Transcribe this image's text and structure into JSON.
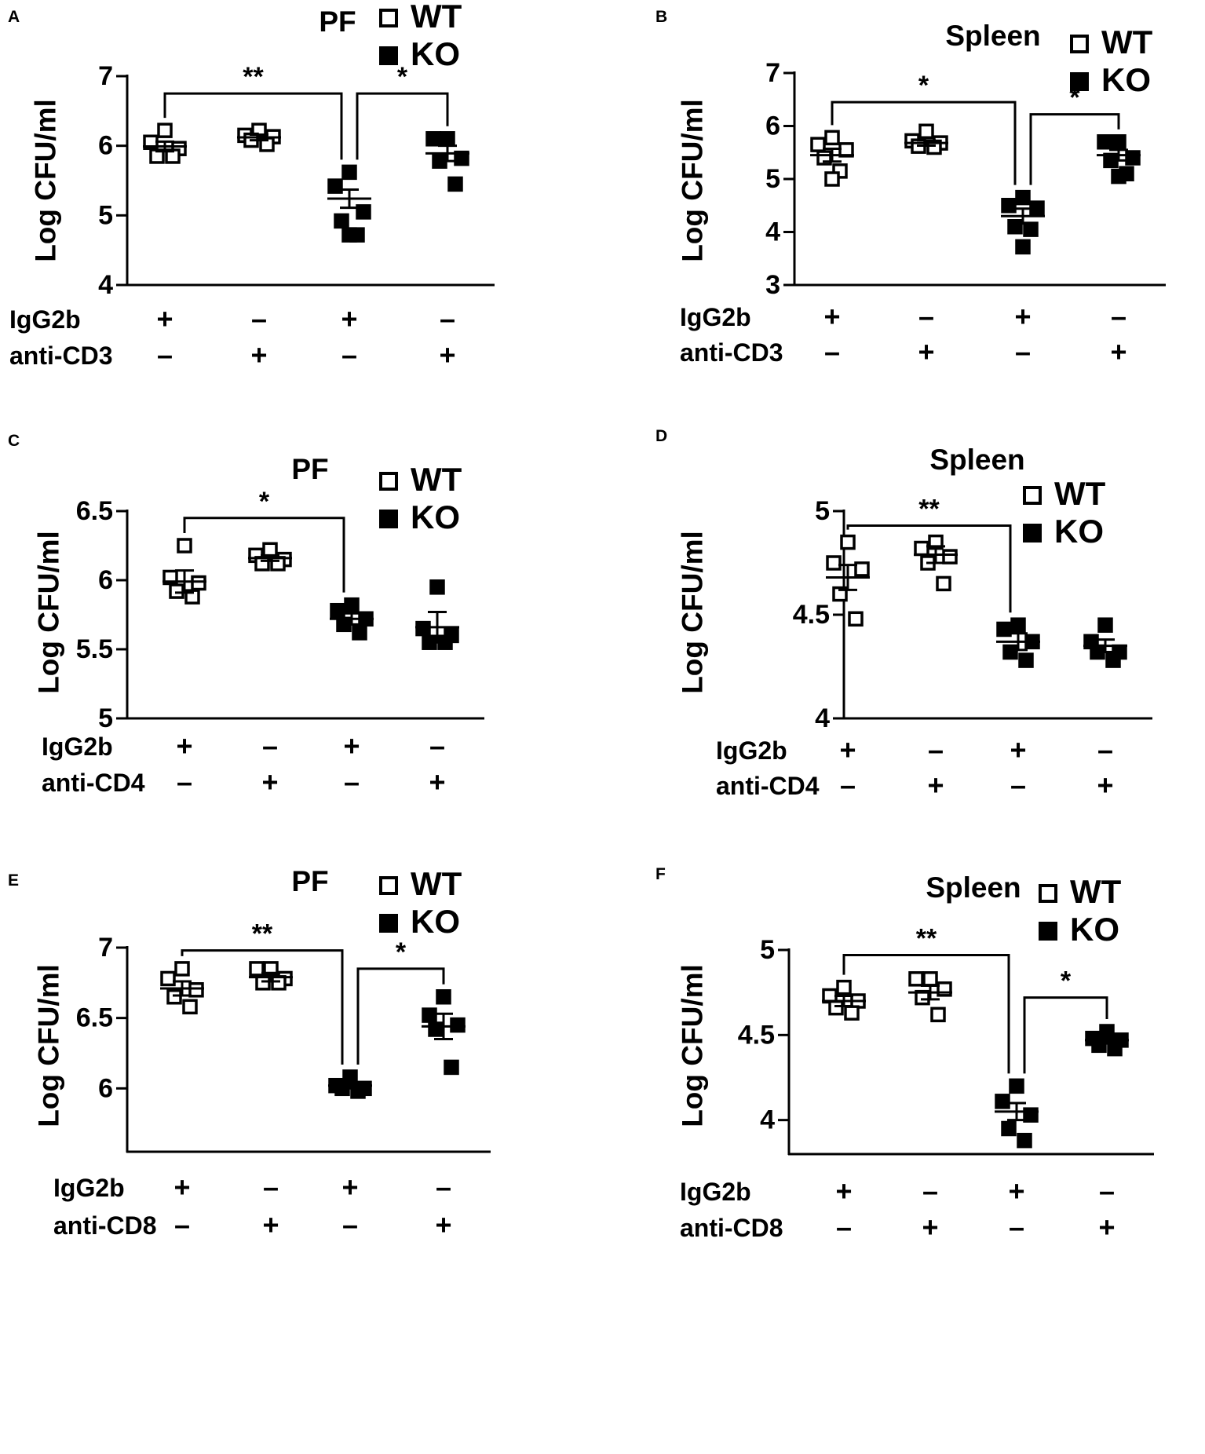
{
  "chart_data": [
    {
      "panel": "A",
      "type": "scatter",
      "title": "PF",
      "ylabel": "Log CFU/ml",
      "xlabel": "",
      "ylim": [
        4,
        7
      ],
      "yticks": [
        "7",
        "6",
        "5",
        "4"
      ],
      "legend": [
        {
          "name": "WT",
          "marker": "open-square"
        },
        {
          "name": "KO",
          "marker": "filled-square"
        }
      ],
      "legend_position": "top-right",
      "rows": [
        {
          "label": "IgG2b",
          "signs": [
            "+",
            "–",
            "+",
            "–"
          ]
        },
        {
          "label": "anti-CD3",
          "signs": [
            "–",
            "+",
            "–",
            "+"
          ]
        }
      ],
      "groups": [
        {
          "genotype": "WT",
          "values": [
            6.22,
            6.05,
            5.96,
            5.85,
            5.85
          ],
          "mean": 5.99,
          "sem": 0.07
        },
        {
          "genotype": "WT",
          "values": [
            6.22,
            6.15,
            6.13,
            6.08,
            6.02
          ],
          "mean": 6.12,
          "sem": 0.04
        },
        {
          "genotype": "KO",
          "values": [
            5.62,
            5.42,
            5.05,
            4.92,
            4.72,
            4.72
          ],
          "mean": 5.24,
          "sem": 0.13
        },
        {
          "genotype": "KO",
          "values": [
            6.1,
            6.1,
            5.82,
            5.78,
            5.45
          ],
          "mean": 5.89,
          "sem": 0.11
        }
      ],
      "significance": [
        {
          "from": 0,
          "to": 2,
          "label": "**",
          "y": 6.75
        },
        {
          "from": 2,
          "to": 3,
          "label": "*",
          "y": 6.75
        }
      ]
    },
    {
      "panel": "B",
      "type": "scatter",
      "title": "Spleen",
      "ylabel": "Log CFU/ml",
      "xlabel": "",
      "ylim": [
        3,
        7
      ],
      "yticks": [
        "7",
        "6",
        "5",
        "4",
        "3"
      ],
      "legend": [
        {
          "name": "WT",
          "marker": "open-square"
        },
        {
          "name": "KO",
          "marker": "filled-square"
        }
      ],
      "legend_position": "top-right",
      "rows": [
        {
          "label": "IgG2b",
          "signs": [
            "+",
            "–",
            "+",
            "–"
          ]
        },
        {
          "label": "anti-CD3",
          "signs": [
            "–",
            "+",
            "–",
            "+"
          ]
        }
      ],
      "groups": [
        {
          "genotype": "WT",
          "values": [
            5.78,
            5.65,
            5.55,
            5.4,
            5.15,
            5.0
          ],
          "mean": 5.45,
          "sem": 0.12
        },
        {
          "genotype": "WT",
          "values": [
            5.9,
            5.72,
            5.68,
            5.62,
            5.6
          ],
          "mean": 5.68,
          "sem": 0.05
        },
        {
          "genotype": "KO",
          "values": [
            4.65,
            4.5,
            4.45,
            4.1,
            4.05,
            3.72
          ],
          "mean": 4.3,
          "sem": 0.14
        },
        {
          "genotype": "KO",
          "values": [
            5.7,
            5.7,
            5.4,
            5.35,
            5.1,
            5.05
          ],
          "mean": 5.45,
          "sem": 0.1
        }
      ],
      "significance": [
        {
          "from": 0,
          "to": 2,
          "label": "*",
          "y": 6.45
        },
        {
          "from": 2,
          "to": 3,
          "label": "*",
          "y": 6.22
        }
      ]
    },
    {
      "panel": "C",
      "type": "scatter",
      "title": "PF",
      "ylabel": "Log CFU/ml",
      "xlabel": "",
      "ylim": [
        5,
        6.5
      ],
      "yticks": [
        "6.5",
        "6",
        "5.5",
        "5"
      ],
      "legend": [
        {
          "name": "WT",
          "marker": "open-square"
        },
        {
          "name": "KO",
          "marker": "filled-square"
        }
      ],
      "legend_position": "top-right",
      "rows": [
        {
          "label": "IgG2b",
          "signs": [
            "+",
            "–",
            "+",
            "–"
          ]
        },
        {
          "label": "anti-CD4",
          "signs": [
            "–",
            "+",
            "–",
            "+"
          ]
        }
      ],
      "groups": [
        {
          "genotype": "WT",
          "values": [
            6.25,
            6.02,
            5.98,
            5.92,
            5.88
          ],
          "mean": 5.99,
          "sem": 0.08
        },
        {
          "genotype": "WT",
          "values": [
            6.22,
            6.18,
            6.15,
            6.12,
            6.12
          ],
          "mean": 6.16,
          "sem": 0.02
        },
        {
          "genotype": "KO",
          "values": [
            5.82,
            5.78,
            5.72,
            5.68,
            5.62
          ],
          "mean": 5.72,
          "sem": 0.04
        },
        {
          "genotype": "KO",
          "values": [
            5.95,
            5.65,
            5.6,
            5.55,
            5.55
          ],
          "mean": 5.66,
          "sem": 0.11
        }
      ],
      "significance": [
        {
          "from": 0,
          "to": 2,
          "label": "*",
          "y": 6.45
        }
      ]
    },
    {
      "panel": "D",
      "type": "scatter",
      "title": "Spleen",
      "ylabel": "Log CFU/ml",
      "xlabel": "",
      "ylim": [
        4,
        5
      ],
      "yticks": [
        "5",
        "4.5",
        "4"
      ],
      "legend": [
        {
          "name": "WT",
          "marker": "open-square"
        },
        {
          "name": "KO",
          "marker": "filled-square"
        }
      ],
      "legend_position": "top-right",
      "rows": [
        {
          "label": "IgG2b",
          "signs": [
            "+",
            "–",
            "+",
            "–"
          ]
        },
        {
          "label": "anti-CD4",
          "signs": [
            "–",
            "+",
            "–",
            "+"
          ]
        }
      ],
      "groups": [
        {
          "genotype": "WT",
          "values": [
            4.85,
            4.75,
            4.72,
            4.6,
            4.48
          ],
          "mean": 4.68,
          "sem": 0.06
        },
        {
          "genotype": "WT",
          "values": [
            4.85,
            4.82,
            4.78,
            4.75,
            4.65
          ],
          "mean": 4.79,
          "sem": 0.04
        },
        {
          "genotype": "KO",
          "values": [
            4.45,
            4.43,
            4.37,
            4.32,
            4.28
          ],
          "mean": 4.37,
          "sem": 0.04
        },
        {
          "genotype": "KO",
          "values": [
            4.45,
            4.37,
            4.32,
            4.32,
            4.28
          ],
          "mean": 4.35,
          "sem": 0.03
        }
      ],
      "significance": [
        {
          "from": 0,
          "to": 2,
          "label": "**",
          "y": 4.93
        }
      ]
    },
    {
      "panel": "E",
      "type": "scatter",
      "title": "PF",
      "ylabel": "Log CFU/ml",
      "xlabel": "",
      "ylim": [
        5.55,
        7
      ],
      "yticks": [
        "7",
        "6.5",
        "6"
      ],
      "legend": [
        {
          "name": "WT",
          "marker": "open-square"
        },
        {
          "name": "KO",
          "marker": "filled-square"
        }
      ],
      "legend_position": "top-right",
      "rows": [
        {
          "label": "IgG2b",
          "signs": [
            "+",
            "–",
            "+",
            "–"
          ]
        },
        {
          "label": "anti-CD8",
          "signs": [
            "–",
            "+",
            "–",
            "+"
          ]
        }
      ],
      "groups": [
        {
          "genotype": "WT",
          "values": [
            6.85,
            6.78,
            6.7,
            6.65,
            6.58
          ],
          "mean": 6.71,
          "sem": 0.05
        },
        {
          "genotype": "WT",
          "values": [
            6.85,
            6.85,
            6.78,
            6.75,
            6.75
          ],
          "mean": 6.79,
          "sem": 0.03
        },
        {
          "genotype": "KO",
          "values": [
            6.08,
            6.02,
            6.0,
            6.0,
            5.98
          ],
          "mean": 6.02,
          "sem": 0.02
        },
        {
          "genotype": "KO",
          "values": [
            6.65,
            6.52,
            6.45,
            6.42,
            6.15
          ],
          "mean": 6.44,
          "sem": 0.09
        }
      ],
      "significance": [
        {
          "from": 0,
          "to": 2,
          "label": "**",
          "y": 6.98
        },
        {
          "from": 2,
          "to": 3,
          "label": "*",
          "y": 6.85
        }
      ]
    },
    {
      "panel": "F",
      "type": "scatter",
      "title": "Spleen",
      "ylabel": "Log CFU/ml",
      "xlabel": "",
      "ylim": [
        3.8,
        5
      ],
      "yticks": [
        "5",
        "4.5",
        "4"
      ],
      "legend": [
        {
          "name": "WT",
          "marker": "open-square"
        },
        {
          "name": "KO",
          "marker": "filled-square"
        }
      ],
      "legend_position": "top-right",
      "rows": [
        {
          "label": "IgG2b",
          "signs": [
            "+",
            "–",
            "+",
            "–"
          ]
        },
        {
          "label": "anti-CD8",
          "signs": [
            "–",
            "+",
            "–",
            "+"
          ]
        }
      ],
      "groups": [
        {
          "genotype": "WT",
          "values": [
            4.78,
            4.73,
            4.7,
            4.66,
            4.63
          ],
          "mean": 4.7,
          "sem": 0.03
        },
        {
          "genotype": "WT",
          "values": [
            4.83,
            4.83,
            4.77,
            4.72,
            4.62
          ],
          "mean": 4.75,
          "sem": 0.04
        },
        {
          "genotype": "KO",
          "values": [
            4.2,
            4.11,
            4.03,
            3.95,
            3.88
          ],
          "mean": 4.05,
          "sem": 0.05
        },
        {
          "genotype": "KO",
          "values": [
            4.52,
            4.48,
            4.47,
            4.44,
            4.42
          ],
          "mean": 4.47,
          "sem": 0.02
        }
      ],
      "significance": [
        {
          "from": 0,
          "to": 2,
          "label": "**",
          "y": 4.97
        },
        {
          "from": 2,
          "to": 3,
          "label": "*",
          "y": 4.72
        }
      ]
    }
  ]
}
